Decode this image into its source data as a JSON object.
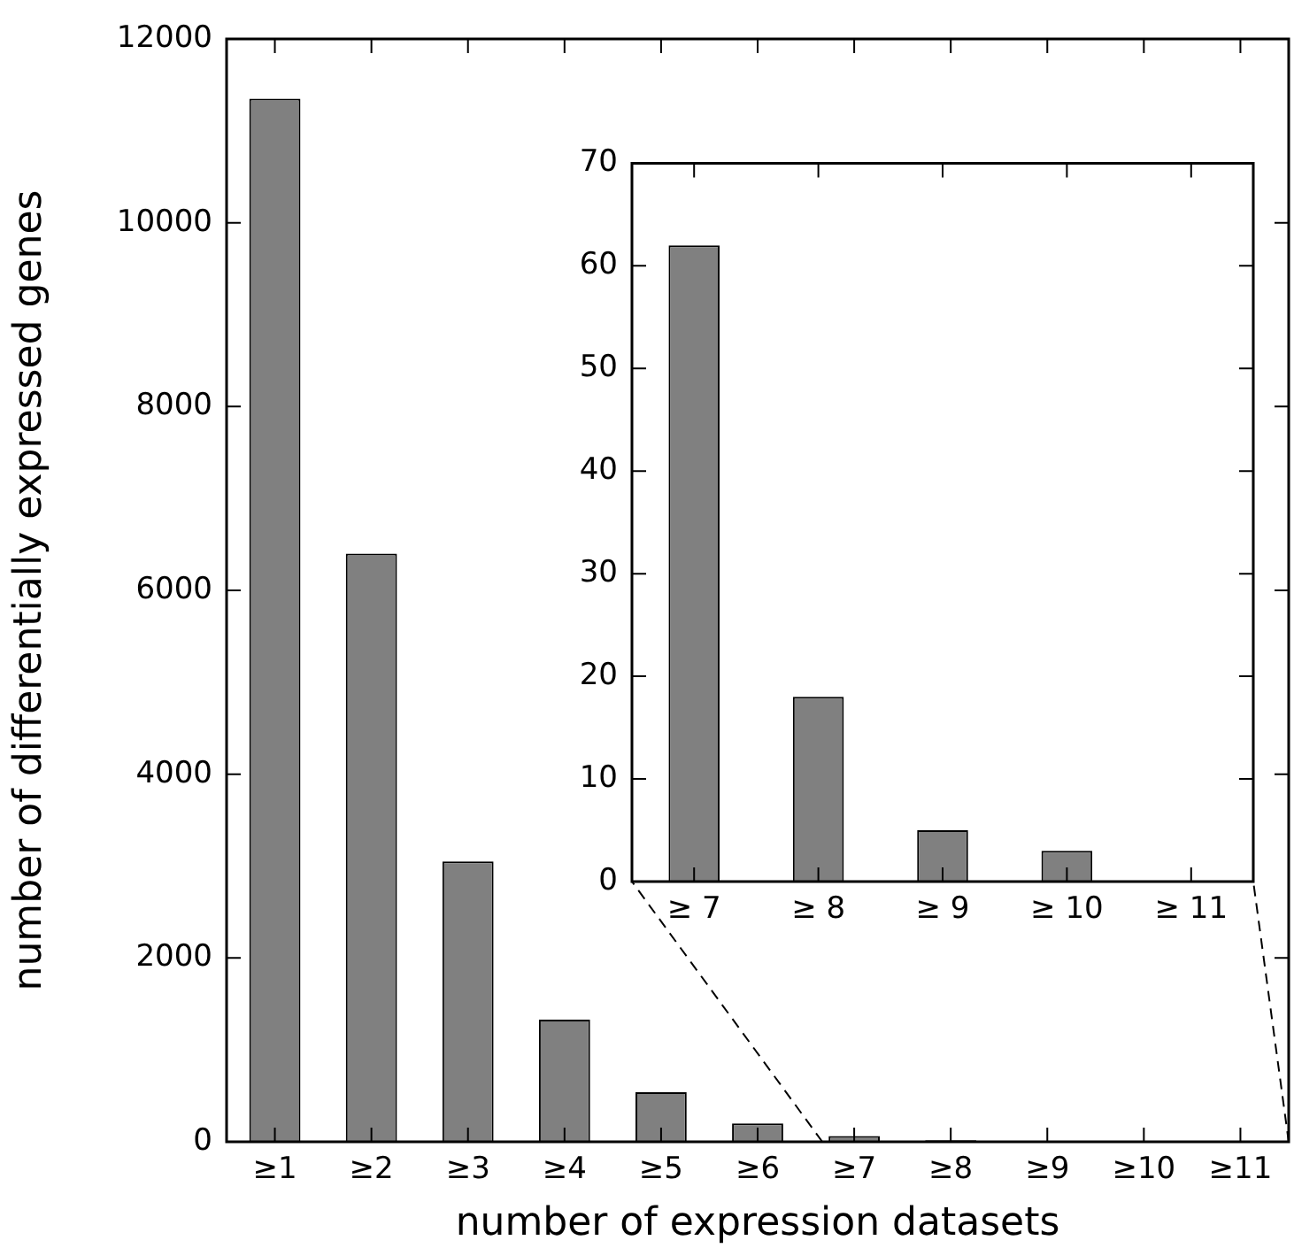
{
  "chart_data": [
    {
      "type": "bar",
      "xlabel": "number of expression datasets",
      "ylabel": "number of differentially expressed genes",
      "categories": [
        "≥1",
        "≥2",
        "≥3",
        "≥4",
        "≥5",
        "≥6",
        "≥7",
        "≥8",
        "≥9",
        "≥10",
        "≥11"
      ],
      "values": [
        11350,
        6400,
        3050,
        1330,
        540,
        200,
        62,
        18,
        5,
        3,
        0
      ],
      "color": "#808080",
      "ylim": [
        0,
        12000
      ],
      "yticks": [
        0,
        2000,
        4000,
        6000,
        8000,
        10000,
        12000
      ],
      "grid": false,
      "legend": false
    },
    {
      "type": "bar",
      "categories": [
        "≥ 7",
        "≥ 8",
        "≥ 9",
        "≥ 10",
        "≥ 11"
      ],
      "values": [
        62,
        18,
        5,
        3,
        0
      ],
      "color": "#808080",
      "ylim": [
        0,
        70
      ],
      "yticks": [
        0,
        10,
        20,
        30,
        40,
        50,
        60,
        70
      ],
      "grid": false,
      "legend": false
    }
  ]
}
